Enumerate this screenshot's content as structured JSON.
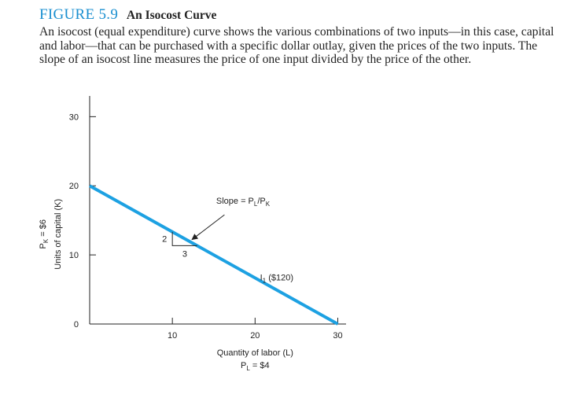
{
  "figure": {
    "number": "FIGURE 5.9",
    "title": "An Isocost Curve",
    "caption": "An isocost (equal expenditure) curve shows the various combinations of two inputs—in this case, capital and labor—that can be purchased with a specific dollar outlay, given the prices of the two inputs. The slope of an isocost line measures the price of one input divided by the price of the other."
  },
  "colors": {
    "line": "#1da1e2",
    "axis": "#222222",
    "title_accent": "#1a8fd0"
  },
  "chart_data": {
    "type": "line",
    "xlabel": "Quantity of labor (L)",
    "xlabel_note": "P_L = $4",
    "ylabel": "Units of capital (K)",
    "ylabel_note": "P_K = $6",
    "xlim": [
      0,
      31
    ],
    "ylim": [
      0,
      33
    ],
    "x_ticks": [
      10,
      20,
      30
    ],
    "y_ticks": [
      0,
      10,
      20,
      30
    ],
    "grid": false,
    "series": [
      {
        "name": "I₁ ($120)",
        "x": [
          0,
          30
        ],
        "y": [
          20,
          0
        ]
      }
    ],
    "annotations": {
      "slope_label": "Slope = P_L/P_K",
      "rise": "2",
      "run": "3",
      "rise_run_at": [
        10,
        13.333
      ],
      "arrow_target": [
        12,
        12
      ]
    }
  }
}
